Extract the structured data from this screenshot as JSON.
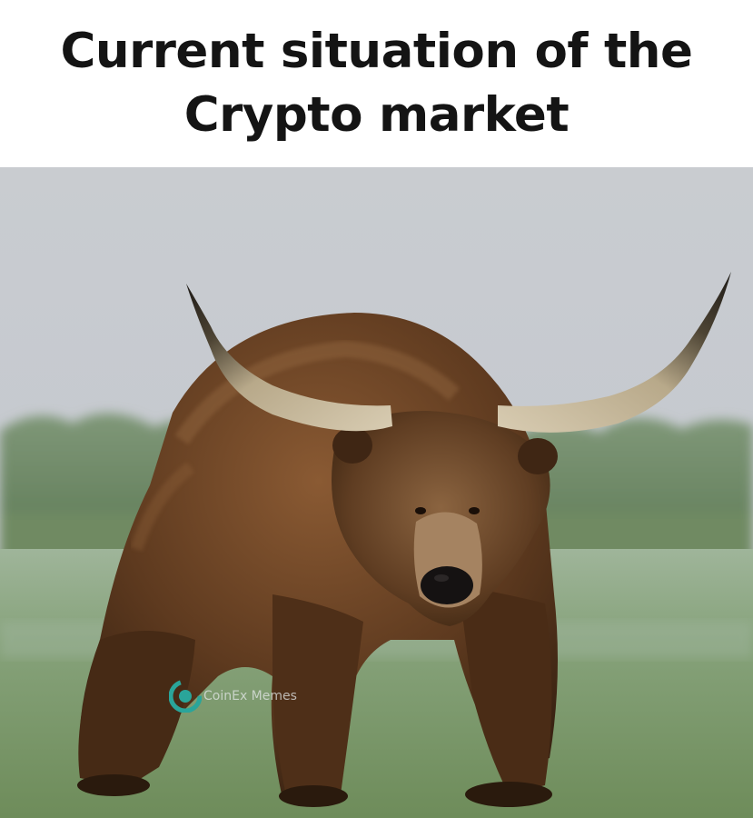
{
  "meme": {
    "caption": {
      "line1": "Current situation of the",
      "line2": "Crypto market"
    },
    "watermark": {
      "text": "CoinEx Memes",
      "icon": "coinex-logo-icon"
    },
    "colors": {
      "caption_text": "#141414",
      "background": "#ffffff",
      "watermark_accent": "#2aa59a"
    }
  }
}
